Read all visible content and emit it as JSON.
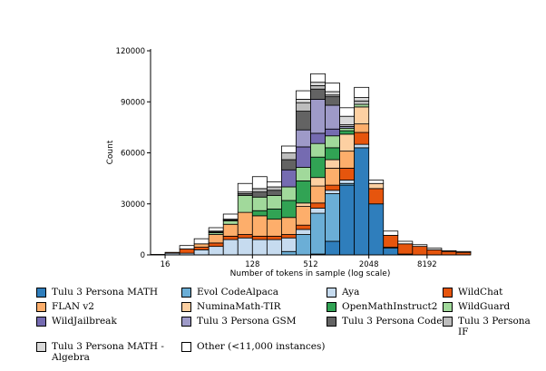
{
  "chart_data": {
    "type": "bar",
    "subtype": "stacked-histogram",
    "title": "",
    "xlabel": "Number of tokens in sample (log scale)",
    "ylabel": "Count",
    "xscale": "log2",
    "xlim_log2": [
      3.5,
      14.5
    ],
    "ylim": [
      0,
      120000
    ],
    "yticks": [
      0,
      30000,
      60000,
      90000,
      120000
    ],
    "ytick_labels": [
      "0",
      "30000",
      "60000",
      "90000",
      "120000"
    ],
    "xticks": [
      16,
      128,
      512,
      2048,
      8192
    ],
    "xtick_labels": [
      "16",
      "128",
      "512",
      "2048",
      "8192"
    ],
    "bin_edges_log2": [
      3.5,
      4.0,
      4.5,
      5.0,
      5.5,
      6.0,
      6.5,
      7.0,
      7.5,
      8.0,
      8.5,
      9.0,
      9.5,
      10.0,
      10.5,
      11.0,
      11.5,
      12.0,
      12.5,
      13.0,
      13.5,
      14.0,
      14.5
    ],
    "series": [
      {
        "name": "Tulu 3 Persona MATH",
        "color": "#2f7ebc",
        "values": [
          0,
          0,
          0,
          0,
          0,
          0,
          0,
          0,
          0,
          0,
          0,
          500,
          8000,
          41000,
          63000,
          30000,
          4000,
          0,
          0,
          0,
          0,
          0
        ]
      },
      {
        "name": "Evol CodeAlpaca",
        "color": "#6baed6",
        "values": [
          0,
          0,
          0,
          0,
          0,
          0,
          0,
          0,
          0,
          2000,
          12000,
          24000,
          28000,
          1000,
          0,
          0,
          0,
          0,
          0,
          0,
          0,
          0
        ]
      },
      {
        "name": "Aya",
        "color": "#c6dbef",
        "values": [
          0,
          1000,
          1000,
          3000,
          5000,
          9000,
          10000,
          9000,
          9000,
          8000,
          3000,
          3000,
          2000,
          2000,
          2000,
          0,
          500,
          500,
          0,
          0,
          0,
          0
        ]
      },
      {
        "name": "WildChat",
        "color": "#e6550d",
        "values": [
          300,
          500,
          2500,
          1500,
          2000,
          2000,
          2000,
          2000,
          2000,
          2000,
          2500,
          3000,
          3000,
          7000,
          7000,
          9000,
          7000,
          6000,
          5000,
          3000,
          2000,
          1500
        ]
      },
      {
        "name": "FLAN v2",
        "color": "#fdae6b",
        "values": [
          0,
          0,
          0,
          2000,
          5000,
          7000,
          13000,
          12000,
          10000,
          10000,
          11000,
          10000,
          10000,
          10000,
          5000,
          0,
          0,
          0,
          0,
          0,
          0,
          0
        ]
      },
      {
        "name": "NuminaMath-TIR",
        "color": "#fdd0a2",
        "values": [
          0,
          0,
          0,
          0,
          0,
          0,
          0,
          0,
          0,
          0,
          2000,
          5000,
          5000,
          10000,
          10000,
          3000,
          0,
          0,
          0,
          0,
          0,
          0
        ]
      },
      {
        "name": "OpenMathInstruct2",
        "color": "#31a354",
        "values": [
          0,
          0,
          0,
          0,
          0,
          0,
          0,
          3000,
          6000,
          10000,
          13000,
          12000,
          7000,
          2000,
          0,
          0,
          0,
          0,
          0,
          0,
          0,
          0
        ]
      },
      {
        "name": "WildGuard",
        "color": "#a1d99b",
        "values": [
          0,
          0,
          0,
          0,
          1000,
          2000,
          10000,
          8000,
          8000,
          8000,
          8000,
          8000,
          7000,
          1500,
          1500,
          0,
          0,
          0,
          0,
          0,
          0,
          0
        ]
      },
      {
        "name": "WildJailbreak",
        "color": "#756bb1",
        "values": [
          0,
          0,
          0,
          0,
          0,
          0,
          0,
          0,
          0,
          10000,
          12000,
          6000,
          4000,
          0,
          0,
          0,
          0,
          0,
          0,
          0,
          0,
          0
        ]
      },
      {
        "name": "Tulu 3 Persona GSM",
        "color": "#9e9ac8",
        "values": [
          0,
          0,
          0,
          0,
          0,
          0,
          0,
          0,
          0,
          0,
          10000,
          20000,
          14000,
          1000,
          0,
          0,
          0,
          0,
          0,
          0,
          0,
          0
        ]
      },
      {
        "name": "Tulu 3 Persona Code",
        "color": "#636363",
        "values": [
          0,
          0,
          0,
          0,
          500,
          500,
          1000,
          3000,
          3000,
          6000,
          11000,
          6000,
          5000,
          0,
          0,
          0,
          0,
          0,
          0,
          0,
          0,
          0
        ]
      },
      {
        "name": "Tulu 3 Persona IF",
        "color": "#bdbdbd",
        "values": [
          0,
          0,
          0,
          0,
          500,
          500,
          1000,
          2000,
          2000,
          4000,
          5000,
          2000,
          1000,
          1000,
          2000,
          0,
          0,
          0,
          0,
          0,
          0,
          0
        ]
      },
      {
        "name": "Tulu 3 Persona MATH - Algebra",
        "color": "#d9d9d9",
        "values": [
          0,
          0,
          0,
          0,
          0,
          0,
          0,
          0,
          0,
          0,
          2000,
          2000,
          2000,
          5000,
          2000,
          0,
          0,
          0,
          0,
          0,
          0,
          0
        ]
      },
      {
        "name": "Other (<11,000 instances)",
        "color": "#ffffff",
        "values": [
          0,
          0,
          2000,
          3000,
          2000,
          3000,
          5000,
          7000,
          3000,
          4000,
          5000,
          5000,
          5000,
          5000,
          6000,
          2000,
          2500,
          1500,
          1000,
          1000,
          500,
          500
        ]
      }
    ]
  },
  "legend": {
    "items": [
      {
        "label": "Tulu 3 Persona MATH",
        "color": "#2f7ebc"
      },
      {
        "label": "Evol CodeAlpaca",
        "color": "#6baed6"
      },
      {
        "label": "Aya",
        "color": "#c6dbef"
      },
      {
        "label": "WildChat",
        "color": "#e6550d"
      },
      {
        "label": "FLAN v2",
        "color": "#fdae6b"
      },
      {
        "label": "NuminaMath-TIR",
        "color": "#fdd0a2"
      },
      {
        "label": "OpenMathInstruct2",
        "color": "#31a354"
      },
      {
        "label": "WildGuard",
        "color": "#a1d99b"
      },
      {
        "label": "WildJailbreak",
        "color": "#756bb1"
      },
      {
        "label": "Tulu 3 Persona GSM",
        "color": "#9e9ac8"
      },
      {
        "label": "Tulu 3 Persona Code",
        "color": "#636363"
      },
      {
        "label": "Tulu 3 Persona IF",
        "color": "#bdbdbd"
      },
      {
        "label": "Tulu 3 Persona MATH - Algebra",
        "color": "#d9d9d9"
      },
      {
        "label": "Other (<11,000 instances)",
        "color": "#ffffff"
      }
    ]
  }
}
